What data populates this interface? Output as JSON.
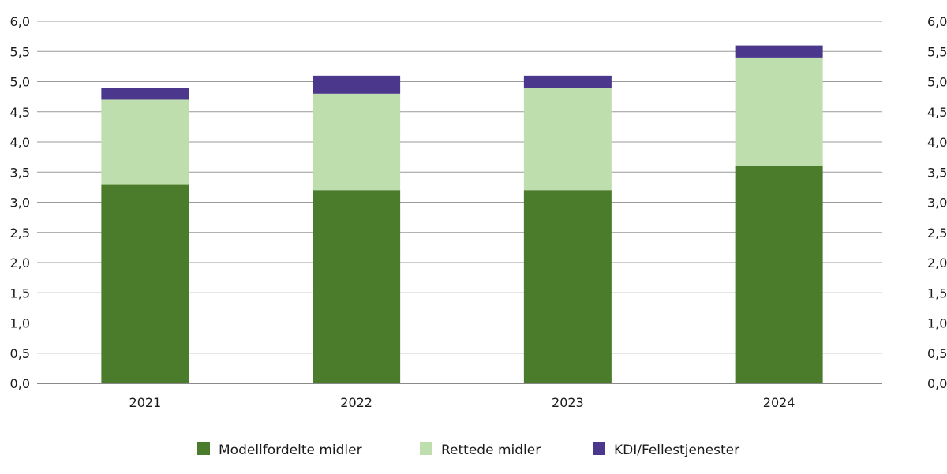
{
  "chart_data": {
    "type": "bar",
    "stacked": true,
    "title": "",
    "xlabel": "",
    "ylabel": "",
    "categories": [
      "2021",
      "2022",
      "2023",
      "2024"
    ],
    "series": [
      {
        "name": "Modellfordelte midler",
        "color": "#4a7c2c",
        "values": [
          3.3,
          3.2,
          3.2,
          3.6
        ]
      },
      {
        "name": "Rettede midler",
        "color": "#bfdeae",
        "values": [
          1.4,
          1.6,
          1.7,
          1.8
        ]
      },
      {
        "name": "KDI/Fellestjenester",
        "color": "#4b388c",
        "values": [
          0.2,
          0.3,
          0.2,
          0.2
        ]
      }
    ],
    "ylim": [
      0,
      6
    ],
    "yticks": [
      "0,0",
      "0,5",
      "1,0",
      "1,5",
      "2,0",
      "2,5",
      "3,0",
      "3,5",
      "4,0",
      "4,5",
      "5,0",
      "5,5",
      "6,0"
    ],
    "y_axis_both_sides": true,
    "grid": true,
    "legend_position": "bottom"
  }
}
